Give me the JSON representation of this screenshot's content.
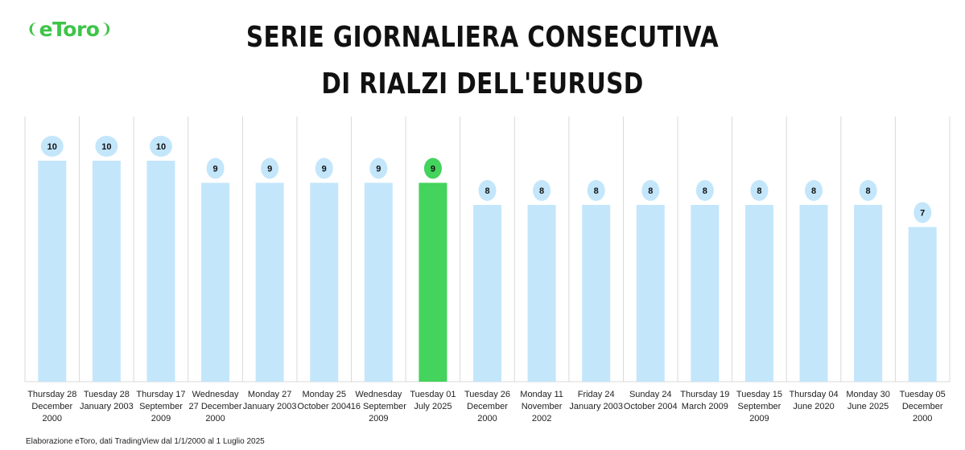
{
  "brand": {
    "logo_text": "eToro"
  },
  "header": {
    "title_line1": "SERIE GIORNALIERA CONSECUTIVA",
    "title_line2": "DI RIALZI DELL'EURUSD"
  },
  "footnote": "Elaborazione eToro, dati TradingView dal 1/1/2000 al 1 Luglio 2025",
  "colors": {
    "bar": "#c3e6fb",
    "highlight": "#44d35c",
    "label_bubble": "#c3e6fb",
    "grid": "#d9d9d9",
    "brand": "#3ec44a"
  },
  "chart_data": {
    "type": "bar",
    "categories": [
      [
        "Thursday 28",
        "December",
        "2000"
      ],
      [
        "Tuesday 28",
        "January 2003"
      ],
      [
        "Thursday 17",
        "September",
        "2009"
      ],
      [
        "Wednesday",
        "27 December",
        "2000"
      ],
      [
        "Monday 27",
        "January 2003"
      ],
      [
        "Monday 25",
        "October 2004"
      ],
      [
        "Wednesday",
        "16 September",
        "2009"
      ],
      [
        "Tuesday 01",
        "July 2025"
      ],
      [
        "Tuesday 26",
        "December",
        "2000"
      ],
      [
        "Monday 11",
        "November",
        "2002"
      ],
      [
        "Friday 24",
        "January 2003"
      ],
      [
        "Sunday 24",
        "October 2004"
      ],
      [
        "Thursday 19",
        "March 2009"
      ],
      [
        "Tuesday 15",
        "September",
        "2009"
      ],
      [
        "Thursday 04",
        "June 2020"
      ],
      [
        "Monday 30",
        "June 2025"
      ],
      [
        "Tuesday 05",
        "December",
        "2000"
      ]
    ],
    "values": [
      10,
      10,
      10,
      9,
      9,
      9,
      9,
      9,
      8,
      8,
      8,
      8,
      8,
      8,
      8,
      8,
      7
    ],
    "highlight_index": 7,
    "ylim": [
      0,
      12
    ],
    "grid": "vertical category separators",
    "data_labels": true
  }
}
